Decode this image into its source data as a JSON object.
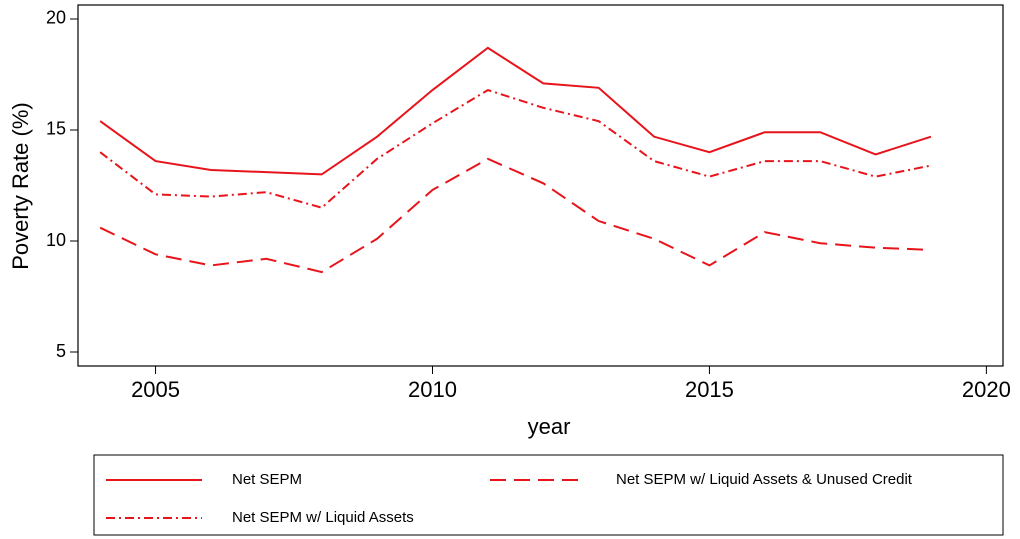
{
  "chart_data": {
    "type": "line",
    "x_label": "year",
    "y_label": "Poverty Rate (%)",
    "x": [
      2004,
      2005,
      2006,
      2007,
      2008,
      2009,
      2010,
      2011,
      2012,
      2013,
      2014,
      2015,
      2016,
      2017,
      2018,
      2019
    ],
    "series": [
      {
        "name": "Net SEPM",
        "color": "#e8141b",
        "dash": "solid",
        "values": [
          15.4,
          13.6,
          13.2,
          13.1,
          13.0,
          14.7,
          16.8,
          18.7,
          17.1,
          16.9,
          14.7,
          14.0,
          14.9,
          14.9,
          13.9,
          14.7
        ]
      },
      {
        "name": "Net SEPM w/ Liquid Assets & Unused Credit",
        "color": "#e8141b",
        "dash": "dashed",
        "values": [
          10.6,
          9.4,
          8.9,
          9.2,
          8.6,
          10.1,
          12.3,
          13.7,
          12.6,
          10.9,
          10.1,
          8.9,
          10.4,
          9.9,
          9.7,
          9.6
        ]
      },
      {
        "name": "Net SEPM w/ Liquid Assets",
        "color": "#e8141b",
        "dash": "dashdot",
        "values": [
          14.0,
          12.1,
          12.0,
          12.2,
          11.5,
          13.7,
          15.3,
          16.8,
          16.0,
          15.4,
          13.6,
          12.9,
          13.6,
          13.6,
          12.9,
          13.4
        ]
      }
    ],
    "xlim": [
      2003.6,
      2020.3
    ],
    "xticks": [
      2005,
      2010,
      2015,
      2020
    ],
    "ylim": [
      4.37,
      20.63
    ],
    "yticks": [
      5,
      10,
      15,
      20
    ],
    "grid": false,
    "legend": "bottom"
  }
}
